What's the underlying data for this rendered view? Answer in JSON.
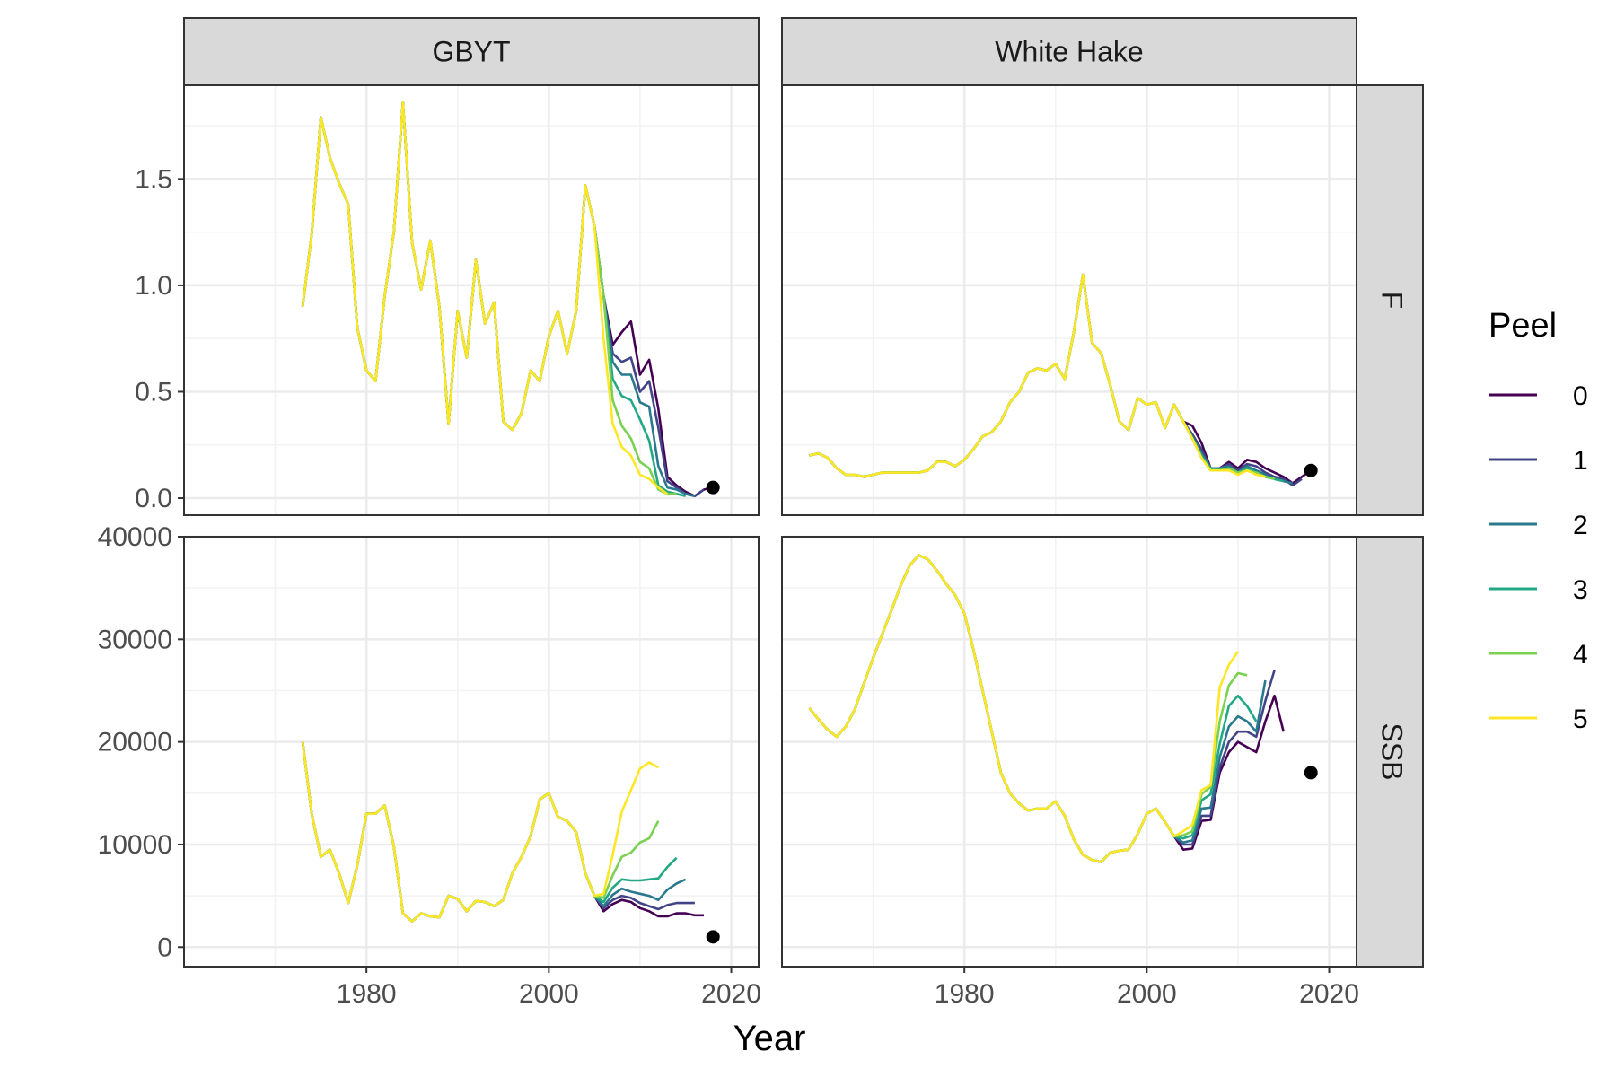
{
  "chart_data": {
    "type": "line",
    "xlabel": "Year",
    "xticks": [
      1980,
      2000,
      2020
    ],
    "xlim": [
      1960,
      2023
    ],
    "legend": {
      "title": "Peel",
      "position": "right",
      "entries": [
        {
          "label": "0",
          "color": "#440154"
        },
        {
          "label": "1",
          "color": "#414487"
        },
        {
          "label": "2",
          "color": "#2A788E"
        },
        {
          "label": "3",
          "color": "#22A884"
        },
        {
          "label": "4",
          "color": "#7AD151"
        },
        {
          "label": "5",
          "color": "#FDE725"
        }
      ]
    },
    "columns": [
      "GBYT",
      "White Hake"
    ],
    "rows": [
      {
        "label": "F",
        "ylim": [
          -0.08,
          1.94
        ],
        "yticks": [
          0.0,
          0.5,
          1.0,
          1.5
        ],
        "ytick_labels": [
          "0.0",
          "0.5",
          "1.0",
          "1.5"
        ]
      },
      {
        "label": "SSB",
        "ylim": [
          -1900,
          40000
        ],
        "yticks": [
          0,
          10000,
          20000,
          30000,
          40000
        ],
        "ytick_labels": [
          "0",
          "10000",
          "20000",
          "30000",
          "40000"
        ]
      }
    ],
    "panels": [
      {
        "stock": "GBYT",
        "metric": "F",
        "base": {
          "start": 1973,
          "values": [
            0.9,
            1.24,
            1.79,
            1.6,
            1.48,
            1.38,
            0.8,
            0.6,
            0.55,
            0.95,
            1.25,
            1.86,
            1.2,
            0.98,
            1.21,
            0.9,
            0.35,
            0.88,
            0.66,
            1.12,
            0.82,
            0.92,
            0.36,
            0.32,
            0.4,
            0.6,
            0.55,
            0.76,
            0.88,
            0.68,
            0.88,
            1.47,
            1.28,
            0.95
          ]
        },
        "peels": [
          {
            "peel": 0,
            "start": 2007,
            "values": [
              0.72,
              0.78,
              0.83,
              0.58,
              0.65,
              0.42,
              0.1,
              0.06,
              0.03,
              0.01,
              0.04,
              0.05
            ]
          },
          {
            "peel": 1,
            "start": 2007,
            "values": [
              0.68,
              0.64,
              0.66,
              0.5,
              0.55,
              0.33,
              0.08,
              0.05,
              0.02,
              0.01,
              0.04
            ]
          },
          {
            "peel": 2,
            "start": 2007,
            "values": [
              0.64,
              0.58,
              0.58,
              0.45,
              0.43,
              0.15,
              0.05,
              0.04,
              0.02,
              0.01
            ]
          },
          {
            "peel": 3,
            "start": 2007,
            "values": [
              0.56,
              0.48,
              0.46,
              0.37,
              0.27,
              0.06,
              0.03,
              0.02,
              0.01
            ]
          },
          {
            "peel": 4,
            "start": 2007,
            "values": [
              0.46,
              0.34,
              0.28,
              0.17,
              0.14,
              0.04,
              0.02,
              0.02
            ]
          },
          {
            "peel": 5,
            "start": 2006,
            "values": [
              0.75,
              0.35,
              0.24,
              0.2,
              0.11,
              0.09,
              0.05,
              0.02
            ]
          }
        ],
        "point": {
          "x": 2018,
          "y": 0.05
        }
      },
      {
        "stock": "White Hake",
        "metric": "F",
        "base": {
          "start": 1963,
          "values": [
            0.2,
            0.21,
            0.19,
            0.14,
            0.11,
            0.11,
            0.1,
            0.11,
            0.12,
            0.12,
            0.12,
            0.12,
            0.12,
            0.13,
            0.17,
            0.17,
            0.15,
            0.18,
            0.23,
            0.29,
            0.31,
            0.36,
            0.45,
            0.5,
            0.59,
            0.61,
            0.6,
            0.63,
            0.56,
            0.78,
            1.05,
            0.73,
            0.68,
            0.53,
            0.36,
            0.32,
            0.47,
            0.44,
            0.45,
            0.33,
            0.44,
            0.36
          ]
        },
        "peels": [
          {
            "peel": 0,
            "start": 2005,
            "values": [
              0.34,
              0.26,
              0.14,
              0.14,
              0.17,
              0.14,
              0.18,
              0.17,
              0.14,
              0.12,
              0.1,
              0.07,
              0.1,
              0.13
            ]
          },
          {
            "peel": 1,
            "start": 2005,
            "values": [
              0.3,
              0.23,
              0.14,
              0.14,
              0.16,
              0.13,
              0.16,
              0.15,
              0.12,
              0.1,
              0.09,
              0.06,
              0.09
            ]
          },
          {
            "peel": 2,
            "start": 2005,
            "values": [
              0.29,
              0.21,
              0.14,
              0.14,
              0.15,
              0.12,
              0.15,
              0.13,
              0.11,
              0.09,
              0.08,
              0.07
            ]
          },
          {
            "peel": 3,
            "start": 2005,
            "values": [
              0.28,
              0.2,
              0.14,
              0.13,
              0.14,
              0.12,
              0.14,
              0.12,
              0.1,
              0.09,
              0.08
            ]
          },
          {
            "peel": 4,
            "start": 2005,
            "values": [
              0.28,
              0.19,
              0.13,
              0.13,
              0.14,
              0.12,
              0.13,
              0.12,
              0.1,
              0.09
            ]
          },
          {
            "peel": 5,
            "start": 2005,
            "values": [
              0.28,
              0.19,
              0.13,
              0.13,
              0.13,
              0.11,
              0.13,
              0.11,
              0.1
            ]
          }
        ],
        "point": {
          "x": 2018,
          "y": 0.13
        }
      },
      {
        "stock": "GBYT",
        "metric": "SSB",
        "base": {
          "start": 1973,
          "values": [
            20000,
            13000,
            8800,
            9500,
            7200,
            4300,
            8000,
            13000,
            13000,
            13800,
            9800,
            3300,
            2500,
            3300,
            3000,
            2900,
            5000,
            4700,
            3500,
            4500,
            4400,
            4000,
            4600,
            7200,
            8800,
            10800,
            14400,
            15000,
            12700,
            12300,
            11200,
            7200,
            5000
          ]
        },
        "peels": [
          {
            "peel": 0,
            "start": 2006,
            "values": [
              3500,
              4200,
              4600,
              4400,
              3800,
              3500,
              3000,
              3000,
              3300,
              3300,
              3100,
              3100
            ]
          },
          {
            "peel": 1,
            "start": 2006,
            "values": [
              3800,
              4600,
              5000,
              4800,
              4300,
              4000,
              3700,
              4100,
              4300,
              4300,
              4300
            ]
          },
          {
            "peel": 2,
            "start": 2006,
            "values": [
              4000,
              5100,
              5700,
              5400,
              5200,
              5000,
              4600,
              5600,
              6200,
              6600
            ]
          },
          {
            "peel": 3,
            "start": 2006,
            "values": [
              4400,
              5800,
              6600,
              6500,
              6500,
              6600,
              6700,
              7800,
              8700
            ]
          },
          {
            "peel": 4,
            "start": 2006,
            "values": [
              4800,
              7000,
              8800,
              9200,
              10200,
              10600,
              12300
            ]
          },
          {
            "peel": 5,
            "start": 2006,
            "values": [
              5200,
              9000,
              13200,
              15300,
              17400,
              18000,
              17500
            ]
          }
        ],
        "point": {
          "x": 2018,
          "y": 1000
        }
      },
      {
        "stock": "White Hake",
        "metric": "SSB",
        "base": {
          "start": 1963,
          "values": [
            23300,
            22200,
            21200,
            20500,
            21500,
            23200,
            25700,
            28200,
            30500,
            32800,
            35200,
            37200,
            38200,
            37800,
            36700,
            35400,
            34300,
            32500,
            29000,
            25000,
            21000,
            17000,
            15000,
            14000,
            13300,
            13500,
            13500,
            14200,
            12800,
            10500,
            9000,
            8500,
            8300,
            9200,
            9400,
            9500,
            11000,
            13000,
            13500,
            12200,
            10800
          ]
        },
        "peels": [
          {
            "peel": 0,
            "start": 2004,
            "values": [
              9500,
              9600,
              12300,
              12400,
              17000,
              19000,
              20000,
              19500,
              19000,
              22000,
              24500,
              21000
            ]
          },
          {
            "peel": 1,
            "start": 2004,
            "values": [
              10000,
              10000,
              12800,
              12800,
              17500,
              20000,
              21000,
              21000,
              20500,
              24000,
              27000
            ]
          },
          {
            "peel": 2,
            "start": 2004,
            "values": [
              10200,
              10400,
              13500,
              13600,
              18500,
              21500,
              22500,
              22000,
              21000,
              26000
            ]
          },
          {
            "peel": 3,
            "start": 2004,
            "values": [
              10600,
              10900,
              14300,
              14900,
              19800,
              23500,
              24500,
              23500,
              22000
            ]
          },
          {
            "peel": 4,
            "start": 2004,
            "values": [
              10900,
              11300,
              14900,
              15600,
              22000,
              25500,
              26700,
              26500
            ]
          },
          {
            "peel": 5,
            "start": 2004,
            "values": [
              11300,
              11900,
              15300,
              15800,
              25300,
              27500,
              28800
            ]
          }
        ],
        "point": {
          "x": 2018,
          "y": 17000
        }
      }
    ]
  }
}
